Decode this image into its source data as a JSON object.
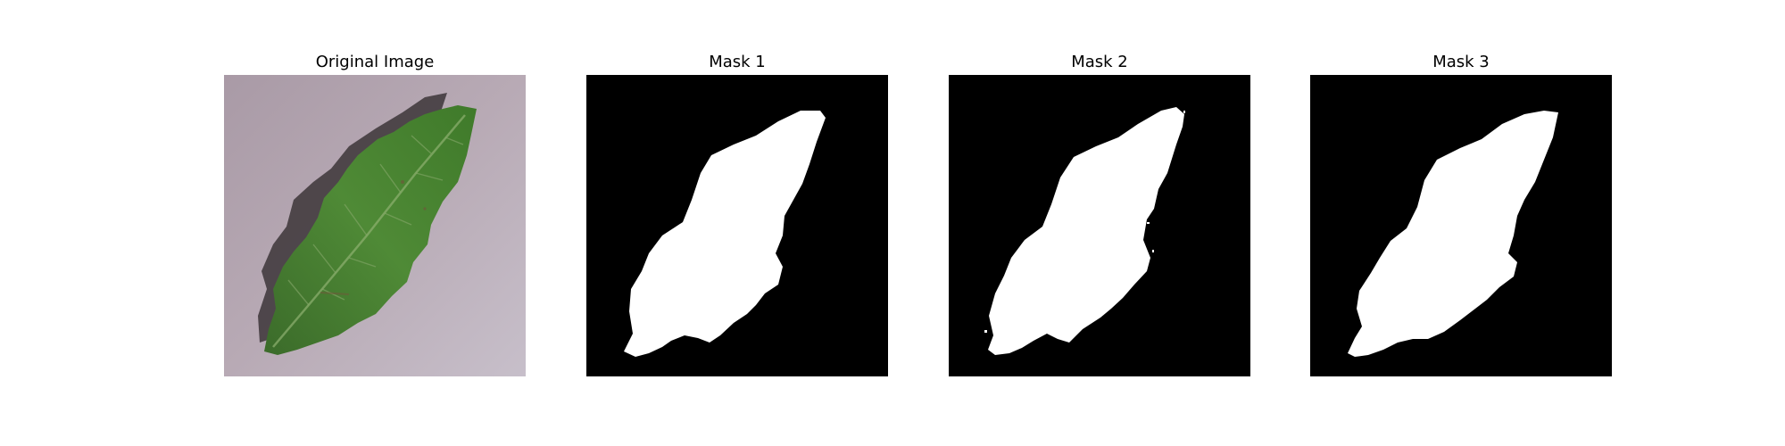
{
  "panels": [
    {
      "title": "Original Image",
      "image": "leaf-photo"
    },
    {
      "title": "Mask 1",
      "image": "segmentation-mask"
    },
    {
      "title": "Mask 2",
      "image": "segmentation-mask"
    },
    {
      "title": "Mask 3",
      "image": "segmentation-mask"
    }
  ],
  "colors": {
    "background": "#ffffff",
    "mask_background": "#000000",
    "mask_foreground": "#ffffff",
    "leaf_green": "#3f7a2a",
    "ground": "#b9a9b4"
  }
}
